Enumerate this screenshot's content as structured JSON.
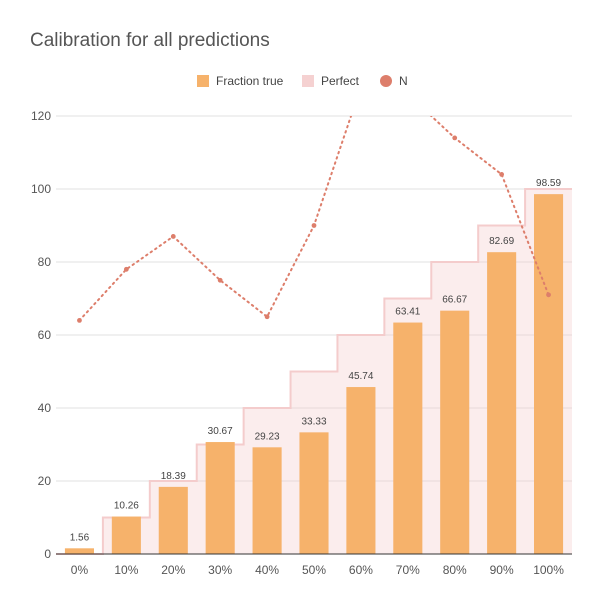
{
  "chart_data": {
    "type": "bar",
    "title": "Calibration for all predictions",
    "xlabel": "",
    "ylabel": "",
    "categories": [
      "0%",
      "10%",
      "20%",
      "30%",
      "40%",
      "50%",
      "60%",
      "70%",
      "80%",
      "90%",
      "100%"
    ],
    "ylim": [
      0,
      120
    ],
    "yticks": [
      0,
      20,
      40,
      60,
      80,
      100,
      120
    ],
    "grid": true,
    "legend": "top",
    "series": [
      {
        "name": "Fraction true",
        "kind": "bar",
        "color": "#f6b26b",
        "values": [
          1.56,
          10.26,
          18.39,
          30.67,
          29.23,
          33.33,
          45.74,
          63.41,
          66.67,
          82.69,
          98.59
        ],
        "labels": [
          "1.56",
          "10.26",
          "18.39",
          "30.67",
          "29.23",
          "33.33",
          "45.74",
          "63.41",
          "66.67",
          "82.69",
          "98.59"
        ]
      },
      {
        "name": "Perfect",
        "kind": "stepped-area",
        "color": "#f4cccc",
        "values": [
          0,
          10,
          20,
          30,
          40,
          50,
          60,
          70,
          80,
          90,
          100
        ]
      },
      {
        "name": "N",
        "kind": "dotted-line",
        "color": "#dd7e6b",
        "values": [
          64,
          78,
          87,
          75,
          65,
          90,
          128,
          126,
          114,
          104,
          71
        ]
      }
    ]
  }
}
